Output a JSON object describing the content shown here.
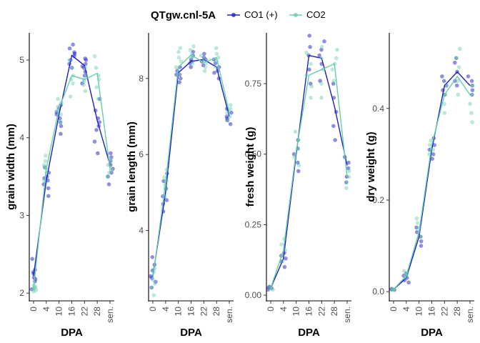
{
  "legend": {
    "title": "QTgw.cnl-5A",
    "position": "top"
  },
  "series_styles": [
    {
      "name": "CO1 (+)",
      "color": "#1f1fbf"
    },
    {
      "name": "CO2",
      "color": "#66cdaa"
    }
  ],
  "chart_data": [
    {
      "type": "line",
      "xlabel": "DPA",
      "ylabel": "grain width (mm)",
      "categories": [
        "0",
        "4",
        "10",
        "16",
        "22",
        "28",
        "sen."
      ],
      "ylim": [
        1.9,
        5.35
      ],
      "yticks": [
        2,
        3,
        4,
        5
      ],
      "tick_labels": [
        "2",
        "3",
        "4",
        "5"
      ],
      "series": [
        {
          "name": "CO1 (+)",
          "means": [
            2.22,
            3.45,
            4.3,
            5.06,
            4.93,
            4.22,
            3.65
          ],
          "points": [
            [
              2.05,
              2.15,
              2.2,
              2.27,
              2.44,
              2.18,
              2.3,
              2.25
            ],
            [
              3.25,
              3.35,
              3.4,
              3.5,
              3.55,
              3.62,
              3.45,
              3.48
            ],
            [
              4.05,
              4.15,
              4.25,
              4.3,
              4.38,
              4.42,
              4.2,
              4.33
            ],
            [
              4.9,
              5.0,
              5.05,
              5.1,
              5.15,
              5.2,
              4.95,
              5.08
            ],
            [
              4.7,
              4.8,
              4.9,
              4.95,
              5.0,
              4.85,
              5.02,
              4.92
            ],
            [
              3.8,
              3.95,
              4.1,
              4.2,
              4.35,
              4.5,
              4.25,
              4.15
            ],
            [
              3.4,
              3.5,
              3.6,
              3.65,
              3.75,
              3.8,
              3.55,
              3.7
            ]
          ]
        },
        {
          "name": "CO2",
          "means": [
            2.06,
            3.6,
            4.38,
            4.8,
            4.75,
            4.83,
            3.6
          ],
          "points": [
            [
              2.02,
              2.04,
              2.07,
              2.1,
              2.05,
              2.08
            ],
            [
              3.45,
              3.55,
              3.6,
              3.65,
              3.7,
              3.77,
              3.62
            ],
            [
              4.2,
              4.3,
              4.4,
              4.45,
              4.5,
              4.35
            ],
            [
              4.53,
              4.7,
              4.8,
              4.9,
              5.0,
              4.75
            ],
            [
              4.6,
              4.68,
              4.75,
              4.8,
              4.9,
              4.72
            ],
            [
              4.5,
              4.65,
              4.8,
              4.9,
              5.05,
              4.75
            ],
            [
              3.5,
              3.55,
              3.6,
              3.65,
              3.72,
              3.58
            ]
          ]
        }
      ]
    },
    {
      "type": "line",
      "xlabel": "DPA",
      "ylabel": "grain length (mm)",
      "categories": [
        "0",
        "4",
        "10",
        "16",
        "22",
        "28",
        "sen."
      ],
      "ylim": [
        2.15,
        9.2
      ],
      "yticks": [
        4,
        6,
        8
      ],
      "tick_labels": [
        "4",
        "6",
        "8"
      ],
      "series": [
        {
          "name": "CO1 (+)",
          "means": [
            2.8,
            5.0,
            8.15,
            8.45,
            8.5,
            8.3,
            7.0
          ],
          "points": [
            [
              2.5,
              2.65,
              2.8,
              2.95,
              3.1,
              3.3,
              2.75
            ],
            [
              4.5,
              4.7,
              4.9,
              5.1,
              5.3,
              5.5,
              4.8
            ],
            [
              7.9,
              8.0,
              8.1,
              8.2,
              8.3,
              8.1
            ],
            [
              8.3,
              8.4,
              8.45,
              8.5,
              8.6,
              8.7
            ],
            [
              8.35,
              8.45,
              8.5,
              8.55,
              8.65
            ],
            [
              8.0,
              8.15,
              8.3,
              8.4,
              8.5,
              8.2
            ],
            [
              6.8,
              6.9,
              7.0,
              7.1,
              7.2,
              6.95
            ]
          ]
        },
        {
          "name": "CO2",
          "means": [
            2.75,
            5.25,
            8.3,
            8.62,
            8.42,
            8.55,
            7.1
          ],
          "points": [
            [
              2.3,
              2.5,
              2.7,
              2.9,
              3.0,
              2.6
            ],
            [
              4.9,
              5.1,
              5.2,
              5.4,
              5.6,
              5.3
            ],
            [
              8.1,
              8.3,
              8.45,
              8.55,
              8.7,
              8.8
            ],
            [
              8.4,
              8.55,
              8.65,
              8.75,
              8.85
            ],
            [
              8.2,
              8.3,
              8.4,
              8.5,
              8.6
            ],
            [
              8.3,
              8.45,
              8.55,
              8.65,
              8.8
            ],
            [
              6.9,
              7.0,
              7.1,
              7.2,
              7.3
            ]
          ]
        }
      ]
    },
    {
      "type": "line",
      "xlabel": "DPA",
      "ylabel": "fresh weight (g)",
      "categories": [
        "0",
        "4",
        "10",
        "16",
        "22",
        "28",
        "sen."
      ],
      "ylim": [
        -0.02,
        0.93
      ],
      "yticks": [
        0.0,
        0.25,
        0.5,
        0.75
      ],
      "tick_labels": [
        "0.00",
        "0.25",
        "0.50",
        "0.75"
      ],
      "series": [
        {
          "name": "CO1 (+)",
          "means": [
            0.025,
            0.13,
            0.5,
            0.85,
            0.84,
            0.67,
            0.46
          ],
          "points": [
            [
              0.02,
              0.025,
              0.03,
              0.028
            ],
            [
              0.1,
              0.12,
              0.13,
              0.14,
              0.15
            ],
            [
              0.44,
              0.47,
              0.5,
              0.52,
              0.55
            ],
            [
              0.75,
              0.8,
              0.85,
              0.88,
              0.92
            ],
            [
              0.76,
              0.82,
              0.85,
              0.87,
              0.9
            ],
            [
              0.55,
              0.6,
              0.65,
              0.7,
              0.75
            ],
            [
              0.4,
              0.42,
              0.45,
              0.47,
              0.49
            ]
          ]
        },
        {
          "name": "CO2",
          "means": [
            0.025,
            0.16,
            0.51,
            0.78,
            0.8,
            0.82,
            0.42
          ],
          "points": [
            [
              0.02,
              0.025,
              0.03
            ],
            [
              0.12,
              0.14,
              0.16,
              0.18,
              0.2
            ],
            [
              0.46,
              0.49,
              0.52,
              0.55,
              0.58
            ],
            [
              0.7,
              0.74,
              0.78,
              0.82,
              0.86
            ],
            [
              0.7,
              0.75,
              0.8,
              0.84,
              0.88
            ],
            [
              0.76,
              0.8,
              0.82,
              0.84,
              0.87
            ],
            [
              0.38,
              0.4,
              0.42,
              0.44
            ]
          ]
        }
      ]
    },
    {
      "type": "line",
      "xlabel": "DPA",
      "ylabel": "dry weight (g)",
      "categories": [
        "0",
        "4",
        "10",
        "16",
        "22",
        "28",
        "sen."
      ],
      "ylim": [
        -0.02,
        0.565
      ],
      "yticks": [
        0.0,
        0.2,
        0.4
      ],
      "tick_labels": [
        "0.0",
        "0.2",
        "0.4"
      ],
      "series": [
        {
          "name": "CO1 (+)",
          "means": [
            0.005,
            0.03,
            0.12,
            0.31,
            0.45,
            0.48,
            0.45
          ],
          "points": [
            [
              0.004,
              0.005,
              0.006
            ],
            [
              0.02,
              0.025,
              0.03,
              0.035,
              0.04
            ],
            [
              0.1,
              0.11,
              0.12,
              0.13,
              0.14
            ],
            [
              0.29,
              0.3,
              0.31,
              0.32,
              0.335
            ],
            [
              0.43,
              0.44,
              0.45,
              0.46,
              0.47
            ],
            [
              0.45,
              0.46,
              0.48,
              0.5,
              0.51
            ],
            [
              0.43,
              0.44,
              0.45,
              0.46,
              0.47
            ]
          ]
        },
        {
          "name": "CO2",
          "means": [
            0.005,
            0.035,
            0.13,
            0.32,
            0.43,
            0.47,
            0.43
          ],
          "points": [
            [
              0.004,
              0.006,
              0.005
            ],
            [
              0.03,
              0.035,
              0.04,
              0.045
            ],
            [
              0.12,
              0.13,
              0.14,
              0.15,
              0.16
            ],
            [
              0.3,
              0.31,
              0.32,
              0.33
            ],
            [
              0.39,
              0.41,
              0.43,
              0.45
            ],
            [
              0.43,
              0.46,
              0.49,
              0.51,
              0.53
            ],
            [
              0.37,
              0.39,
              0.41,
              0.43,
              0.45
            ]
          ]
        }
      ]
    }
  ]
}
